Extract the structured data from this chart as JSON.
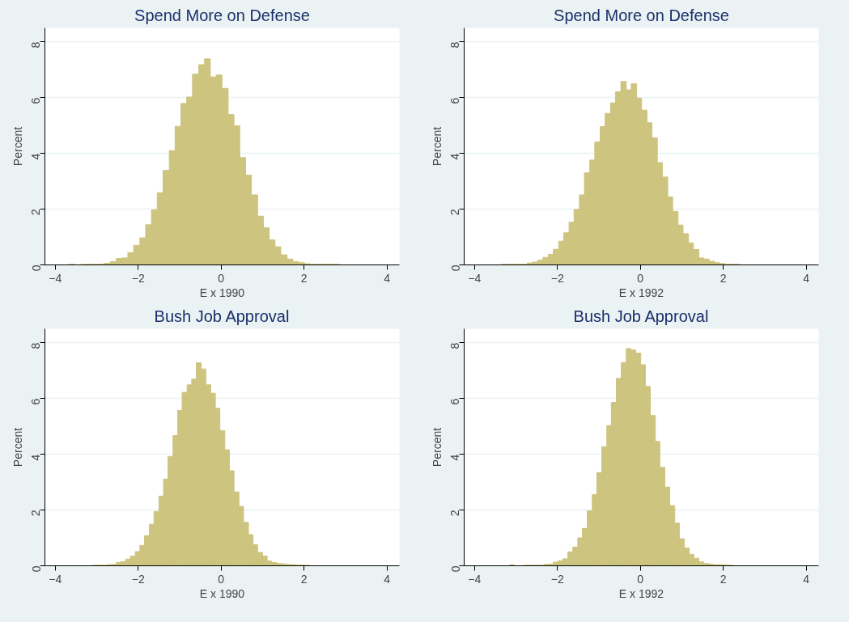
{
  "chart_data": [
    {
      "type": "histogram",
      "title": "Spend More on Defense",
      "xlabel": "E x 1990",
      "ylabel": "Percent",
      "color": "#cdc47f",
      "grid": "y",
      "xlim": [
        -4.25,
        4.3
      ],
      "ylim": [
        0,
        8.5
      ],
      "xticks": [
        -4,
        -2,
        0,
        2,
        4
      ],
      "yticks": [
        0,
        2,
        4,
        6,
        8
      ],
      "bins": [
        -3.67,
        -3.53,
        -3.38,
        -3.24,
        -3.1,
        -2.96,
        -2.82,
        -2.67,
        -2.53,
        -2.39,
        -2.25,
        -2.11,
        -1.96,
        -1.82,
        -1.68,
        -1.54,
        -1.4,
        -1.25,
        -1.11,
        -0.97,
        -0.83,
        -0.69,
        -0.54,
        -0.4,
        -0.26,
        -0.12,
        0.02,
        0.17,
        0.31,
        0.45,
        0.59,
        0.73,
        0.88,
        1.02,
        1.16,
        1.3,
        1.44,
        1.59,
        1.73,
        1.87,
        2.01,
        2.15,
        2.3,
        2.44,
        2.58,
        2.72,
        2.86
      ],
      "values": [
        0.02,
        0,
        0.02,
        0.02,
        0.02,
        0.03,
        0.06,
        0.12,
        0.23,
        0.25,
        0.44,
        0.7,
        0.97,
        1.44,
        1.98,
        2.59,
        3.39,
        4.1,
        4.97,
        5.79,
        6.02,
        6.84,
        7.18,
        7.39,
        6.74,
        6.81,
        6.33,
        5.39,
        4.99,
        3.85,
        3.22,
        2.51,
        1.75,
        1.33,
        0.9,
        0.65,
        0.36,
        0.21,
        0.12,
        0.08,
        0.04,
        0.02,
        0.02,
        0.02,
        0.02,
        0.02
      ]
    },
    {
      "type": "histogram",
      "title": "Spend More on Defense",
      "xlabel": "E x 1992",
      "ylabel": "Percent",
      "color": "#cdc47f",
      "grid": "y",
      "xlim": [
        -4.25,
        4.3
      ],
      "ylim": [
        0,
        8.5
      ],
      "xticks": [
        -4,
        -2,
        0,
        2,
        4
      ],
      "yticks": [
        0,
        2,
        4,
        6,
        8
      ],
      "bins": [
        -3.35,
        -3.23,
        -3.1,
        -2.98,
        -2.85,
        -2.73,
        -2.6,
        -2.48,
        -2.35,
        -2.22,
        -2.1,
        -1.97,
        -1.85,
        -1.72,
        -1.6,
        -1.47,
        -1.35,
        -1.22,
        -1.1,
        -0.97,
        -0.85,
        -0.72,
        -0.6,
        -0.47,
        -0.34,
        -0.22,
        -0.09,
        0.03,
        0.16,
        0.28,
        0.41,
        0.53,
        0.66,
        0.78,
        0.91,
        1.03,
        1.16,
        1.28,
        1.41,
        1.53,
        1.66,
        1.79,
        1.91,
        2.04,
        2.16,
        2.29,
        2.41
      ],
      "values": [
        0.02,
        0.02,
        0.02,
        0.02,
        0.02,
        0.07,
        0.1,
        0.17,
        0.27,
        0.38,
        0.56,
        0.85,
        1.15,
        1.53,
        1.99,
        2.51,
        3.3,
        3.76,
        4.41,
        4.96,
        5.43,
        5.81,
        6.21,
        6.58,
        6.28,
        6.5,
        5.98,
        5.55,
        5.1,
        4.56,
        3.67,
        3.15,
        2.44,
        1.92,
        1.43,
        1.12,
        0.79,
        0.55,
        0.25,
        0.21,
        0.13,
        0.08,
        0.05,
        0.02,
        0.02,
        0.02
      ]
    },
    {
      "type": "histogram",
      "title": "Bush Job Approval",
      "xlabel": "E x 1990",
      "ylabel": "Percent",
      "color": "#cdc47f",
      "grid": "y",
      "xlim": [
        -4.25,
        4.3
      ],
      "ylim": [
        0,
        8.5
      ],
      "xticks": [
        -4,
        -2,
        0,
        2,
        4
      ],
      "yticks": [
        0,
        2,
        4,
        6,
        8
      ],
      "bins": [
        -3.1,
        -2.98,
        -2.87,
        -2.76,
        -2.64,
        -2.53,
        -2.42,
        -2.3,
        -2.19,
        -2.07,
        -1.96,
        -1.85,
        -1.73,
        -1.62,
        -1.5,
        -1.39,
        -1.28,
        -1.16,
        -1.05,
        -0.94,
        -0.82,
        -0.71,
        -0.6,
        -0.48,
        -0.37,
        -0.25,
        -0.14,
        -0.03,
        0.09,
        0.2,
        0.31,
        0.43,
        0.54,
        0.66,
        0.77,
        0.88,
        1.0,
        1.11,
        1.22,
        1.34,
        1.45,
        1.56,
        1.68,
        1.79,
        1.91,
        2.02,
        2.13
      ],
      "values": [
        0.02,
        0.02,
        0.02,
        0.04,
        0.05,
        0.12,
        0.15,
        0.24,
        0.35,
        0.51,
        0.73,
        1.08,
        1.49,
        1.95,
        2.5,
        3.11,
        3.92,
        4.67,
        5.57,
        6.22,
        6.49,
        6.7,
        7.28,
        7.06,
        6.49,
        6.19,
        5.65,
        4.85,
        4.16,
        3.41,
        2.65,
        2.13,
        1.56,
        1.12,
        0.76,
        0.48,
        0.35,
        0.17,
        0.12,
        0.08,
        0.07,
        0.05,
        0.04,
        0.03,
        0.03,
        0.02
      ]
    },
    {
      "type": "histogram",
      "title": "Bush Job Approval",
      "xlabel": "E x 1992",
      "ylabel": "Percent",
      "color": "#cdc47f",
      "grid": "y",
      "xlim": [
        -4.25,
        4.3
      ],
      "ylim": [
        0,
        8.5
      ],
      "xticks": [
        -4,
        -2,
        0,
        2,
        4
      ],
      "yticks": [
        0,
        2,
        4,
        6,
        8
      ],
      "bins": [
        -3.15,
        -3.04,
        -2.92,
        -2.8,
        -2.68,
        -2.57,
        -2.45,
        -2.33,
        -2.22,
        -2.1,
        -1.98,
        -1.87,
        -1.75,
        -1.63,
        -1.51,
        -1.4,
        -1.28,
        -1.16,
        -1.05,
        -0.93,
        -0.81,
        -0.7,
        -0.58,
        -0.46,
        -0.34,
        -0.23,
        -0.11,
        0.01,
        0.12,
        0.24,
        0.36,
        0.47,
        0.59,
        0.71,
        0.83,
        0.94,
        1.06,
        1.18,
        1.29,
        1.41,
        1.53,
        1.65,
        1.76,
        1.88,
        1.99,
        2.11,
        2.23
      ],
      "values": [
        0.04,
        0,
        0,
        0.02,
        0.02,
        0.02,
        0.02,
        0.05,
        0.06,
        0.13,
        0.18,
        0.25,
        0.5,
        0.67,
        1.0,
        1.34,
        1.97,
        2.55,
        3.34,
        4.27,
        5.03,
        5.86,
        6.72,
        7.29,
        7.79,
        7.74,
        7.63,
        7.21,
        6.43,
        5.39,
        4.46,
        3.53,
        2.82,
        2.16,
        1.53,
        0.97,
        0.64,
        0.41,
        0.27,
        0.14,
        0.08,
        0.06,
        0.04,
        0.04,
        0.03,
        0.02
      ]
    }
  ]
}
